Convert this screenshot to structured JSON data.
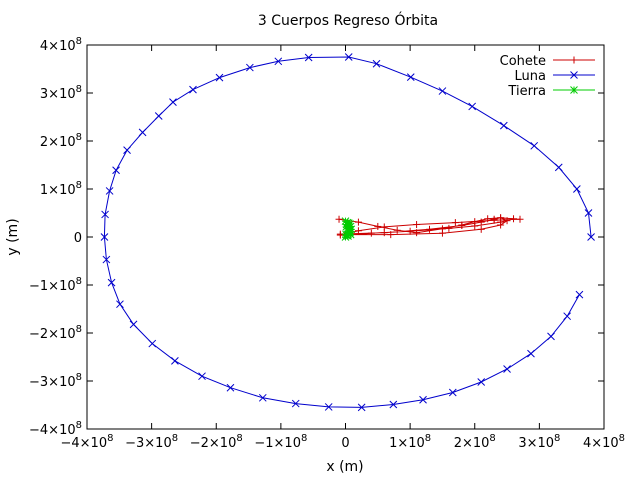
{
  "chart_data": {
    "type": "scatter",
    "title": "3 Cuerpos Regreso Órbita",
    "xlabel": "x (m)",
    "ylabel": "y (m)",
    "xlim": [
      -400000000,
      400000000
    ],
    "ylim": [
      -400000000,
      400000000
    ],
    "grid": false,
    "legend_position": "top-right",
    "x_ticks": [
      {
        "value": -400000000,
        "base": "−4×10",
        "exp": "8"
      },
      {
        "value": -300000000,
        "base": "−3×10",
        "exp": "8"
      },
      {
        "value": -200000000,
        "base": "−2×10",
        "exp": "8"
      },
      {
        "value": -100000000,
        "base": "−1×10",
        "exp": "8"
      },
      {
        "value": 0,
        "base": "0",
        "exp": ""
      },
      {
        "value": 100000000,
        "base": "1×10",
        "exp": "8"
      },
      {
        "value": 200000000,
        "base": "2×10",
        "exp": "8"
      },
      {
        "value": 300000000,
        "base": "3×10",
        "exp": "8"
      },
      {
        "value": 400000000,
        "base": "4×10",
        "exp": "8"
      }
    ],
    "y_ticks": [
      {
        "value": -400000000,
        "base": "−4×10",
        "exp": "8"
      },
      {
        "value": -300000000,
        "base": "−3×10",
        "exp": "8"
      },
      {
        "value": -200000000,
        "base": "−2×10",
        "exp": "8"
      },
      {
        "value": -100000000,
        "base": "−1×10",
        "exp": "8"
      },
      {
        "value": 0,
        "base": "0",
        "exp": ""
      },
      {
        "value": 100000000,
        "base": "1×10",
        "exp": "8"
      },
      {
        "value": 200000000,
        "base": "2×10",
        "exp": "8"
      },
      {
        "value": 300000000,
        "base": "3×10",
        "exp": "8"
      },
      {
        "value": 400000000,
        "base": "4×10",
        "exp": "8"
      }
    ],
    "series": [
      {
        "name": "Cohete",
        "color": "#cc0000",
        "marker": "plus",
        "points": [
          [
            -10000000,
            37000000
          ],
          [
            20000000,
            31000000
          ],
          [
            50000000,
            22000000
          ],
          [
            80000000,
            14000000
          ],
          [
            110000000,
            9000000
          ],
          [
            150000000,
            17000000
          ],
          [
            180000000,
            25000000
          ],
          [
            200000000,
            32000000
          ],
          [
            220000000,
            38000000
          ],
          [
            240000000,
            40000000
          ],
          [
            250000000,
            34000000
          ],
          [
            240000000,
            25000000
          ],
          [
            210000000,
            16000000
          ],
          [
            150000000,
            8000000
          ],
          [
            70000000,
            5000000
          ],
          [
            0,
            5000000
          ],
          [
            -8000000,
            6000000
          ],
          [
            60000000,
            9000000
          ],
          [
            130000000,
            16000000
          ],
          [
            180000000,
            24000000
          ],
          [
            210000000,
            31000000
          ],
          [
            230000000,
            37000000
          ],
          [
            240000000,
            40000000
          ],
          [
            260000000,
            38000000
          ],
          [
            240000000,
            31000000
          ],
          [
            200000000,
            23000000
          ],
          [
            160000000,
            18000000
          ],
          [
            100000000,
            12000000
          ],
          [
            40000000,
            8000000
          ],
          [
            0,
            4000000
          ],
          [
            -8000000,
            4000000
          ],
          [
            20000000,
            13000000
          ],
          [
            60000000,
            21000000
          ],
          [
            110000000,
            26000000
          ],
          [
            170000000,
            30000000
          ],
          [
            230000000,
            35000000
          ],
          [
            270000000,
            37000000
          ]
        ]
      },
      {
        "name": "Luna",
        "color": "#0000cc",
        "marker": "cross",
        "points": [
          [
            380000000,
            0
          ],
          [
            376000000,
            50000000
          ],
          [
            358000000,
            100000000
          ],
          [
            330000000,
            145000000
          ],
          [
            292000000,
            190000000
          ],
          [
            245000000,
            232000000
          ],
          [
            196000000,
            272000000
          ],
          [
            150000000,
            304000000
          ],
          [
            101000000,
            333000000
          ],
          [
            48000000,
            361000000
          ],
          [
            5000000,
            375000000
          ],
          [
            -57000000,
            374000000
          ],
          [
            -104000000,
            366000000
          ],
          [
            -148000000,
            353000000
          ],
          [
            -195000000,
            332000000
          ],
          [
            -236000000,
            307000000
          ],
          [
            -267000000,
            281000000
          ],
          [
            -289000000,
            252000000
          ],
          [
            -314000000,
            218000000
          ],
          [
            -338000000,
            181000000
          ],
          [
            -355000000,
            139000000
          ],
          [
            -365000000,
            96000000
          ],
          [
            -372000000,
            47000000
          ],
          [
            -373000000,
            0
          ],
          [
            -370000000,
            -47000000
          ],
          [
            -362000000,
            -95000000
          ],
          [
            -349000000,
            -140000000
          ],
          [
            -328000000,
            -182000000
          ],
          [
            -299000000,
            -222000000
          ],
          [
            -264000000,
            -258000000
          ],
          [
            -222000000,
            -290000000
          ],
          [
            -178000000,
            -314000000
          ],
          [
            -128000000,
            -335000000
          ],
          [
            -77000000,
            -347000000
          ],
          [
            -26000000,
            -354000000
          ],
          [
            25000000,
            -355000000
          ],
          [
            74000000,
            -349000000
          ],
          [
            120000000,
            -339000000
          ],
          [
            166000000,
            -324000000
          ],
          [
            210000000,
            -302000000
          ],
          [
            250000000,
            -275000000
          ],
          [
            287000000,
            -243000000
          ],
          [
            318000000,
            -207000000
          ],
          [
            343000000,
            -165000000
          ],
          [
            362000000,
            -120000000
          ]
        ]
      },
      {
        "name": "Tierra",
        "color": "#00cc00",
        "marker": "star",
        "points": [
          [
            0,
            0
          ],
          [
            2000000,
            3000000
          ],
          [
            4000000,
            6000000
          ],
          [
            5000000,
            10000000
          ],
          [
            6000000,
            14000000
          ],
          [
            3000000,
            17000000
          ],
          [
            1000000,
            21000000
          ],
          [
            4000000,
            24000000
          ],
          [
            7000000,
            27000000
          ],
          [
            3000000,
            30000000
          ],
          [
            0,
            33000000
          ],
          [
            5000000,
            29000000
          ],
          [
            8000000,
            22000000
          ],
          [
            9000000,
            16000000
          ],
          [
            7000000,
            9000000
          ],
          [
            4000000,
            2000000
          ],
          [
            1000000,
            5000000
          ],
          [
            6000000,
            12000000
          ],
          [
            2000000,
            26000000
          ],
          [
            8000000,
            5000000
          ]
        ]
      }
    ]
  }
}
